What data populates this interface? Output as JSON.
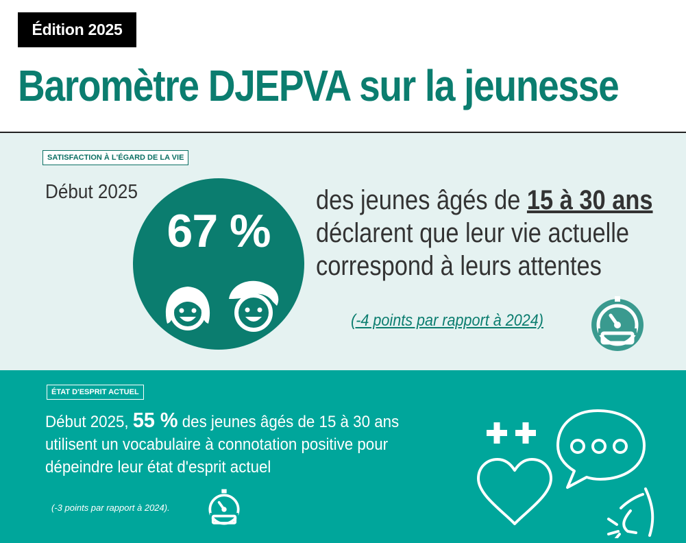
{
  "header": {
    "edition": "Édition 2025",
    "title": "Baromètre DJEPVA sur la jeunesse"
  },
  "satisfaction": {
    "tag": "SATISFACTION À L'ÉGARD DE LA VIE",
    "period": "Début 2025",
    "percentage": "67 %",
    "line1_prefix": "des jeunes âgés de ",
    "line1_emphasis": "15 à 30 ans",
    "line2": "déclarent que leur vie actuelle",
    "line3": "correspond à leurs attentes",
    "comparison": "(-4 points par rapport à 2024)",
    "icons": [
      "girl-face-icon",
      "boy-face-icon",
      "gauge-icon"
    ]
  },
  "state_of_mind": {
    "tag": "ÉTAT D'ESPRIT ACTUEL",
    "period_prefix": "Début 2025, ",
    "percentage": "55 %",
    "line1_suffix": " des jeunes âgés de 15 à 30 ans",
    "line2": "utilisent un vocabulaire à connotation positive pour",
    "line3": "dépeindre leur état d'esprit actuel",
    "comparison": "(-3 points par rapport à 2024).",
    "icons": [
      "gauge-icon",
      "plus-plus-heart-icon",
      "speech-bubble-icon"
    ]
  },
  "colors": {
    "title": "#0b7d6f",
    "circle": "#0b7d6f",
    "section1_bg": "#e5f2f1",
    "section2_bg": "#00a69b",
    "badge_bg": "#000000"
  }
}
